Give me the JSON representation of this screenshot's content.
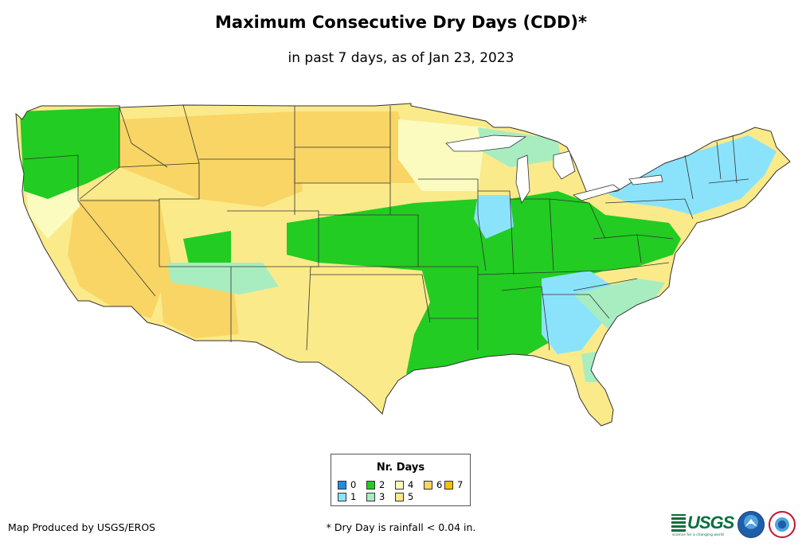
{
  "title": "Maximum Consecutive Dry Days (CDD)*",
  "subtitle": "in past 7 days, as of Jan 23, 2023",
  "legend": {
    "title": "Nr. Days",
    "items": [
      {
        "label": "0",
        "color": "#1b8fe6"
      },
      {
        "label": "1",
        "color": "#8be3fb"
      },
      {
        "label": "2",
        "color": "#22cc22"
      },
      {
        "label": "3",
        "color": "#a8edc0"
      },
      {
        "label": "4",
        "color": "#fbfbc0"
      },
      {
        "label": "5",
        "color": "#fbea8a"
      },
      {
        "label": "6",
        "color": "#f8d565"
      },
      {
        "label": "7",
        "color": "#f8c000"
      }
    ]
  },
  "credit": "Map Produced by USGS/EROS",
  "footnote": "* Dry Day is rainfall < 0.04 in.",
  "logos": {
    "usgs": "USGS",
    "usgs_tagline": "science for a changing world",
    "noaa_icon": "noaa-logo-icon",
    "nws_icon": "nws-logo-icon"
  }
}
